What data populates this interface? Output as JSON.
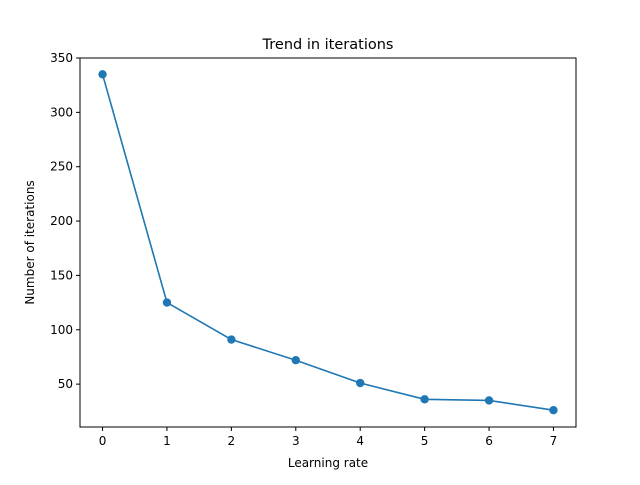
{
  "chart_data": {
    "type": "line",
    "title": "Trend in iterations",
    "xlabel": "Learning rate",
    "ylabel": "Number of iterations",
    "x": [
      0,
      1,
      2,
      3,
      4,
      5,
      6,
      7
    ],
    "series": [
      {
        "values": [
          335,
          125,
          91,
          72,
          51,
          36,
          35,
          26
        ],
        "color": "#1f77b4",
        "marker": "circle"
      }
    ],
    "xlim": [
      -0.35,
      7.35
    ],
    "ylim": [
      10.55,
      350
    ],
    "xticks": [
      0,
      1,
      2,
      3,
      4,
      5,
      6,
      7
    ],
    "xtick_labels": [
      "0",
      "1",
      "2",
      "3",
      "4",
      "5",
      "6",
      "7"
    ],
    "yticks": [
      50,
      100,
      150,
      200,
      250,
      300,
      350
    ],
    "ytick_labels": [
      "50",
      "100",
      "150",
      "200",
      "250",
      "300",
      "350"
    ],
    "grid": false,
    "legend": false
  }
}
